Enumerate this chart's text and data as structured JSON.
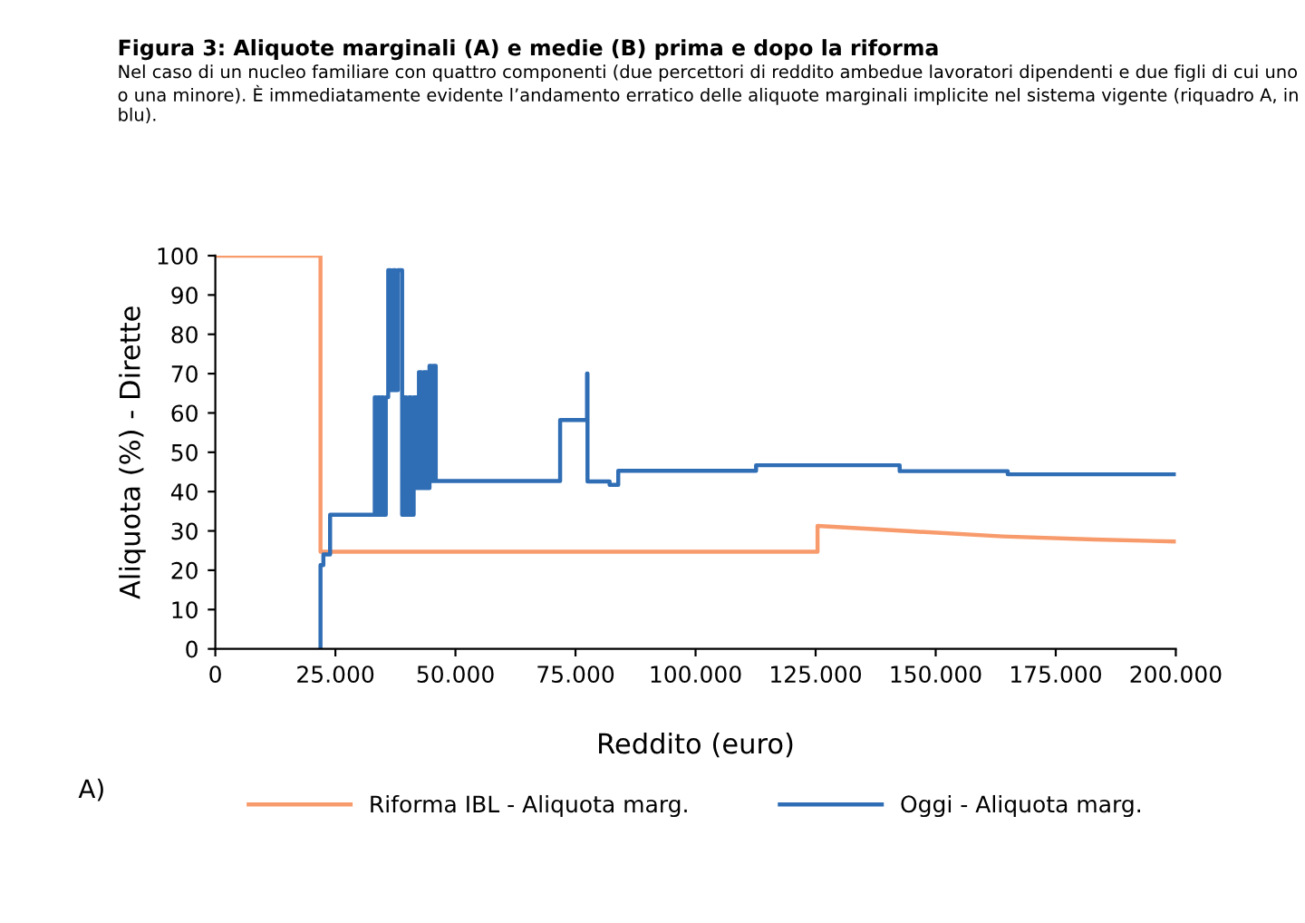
{
  "chart_data": {
    "type": "line",
    "title": "Figura 3: Aliquote marginali (A) e medie (B) prima e dopo la riforma",
    "subtitle": "Nel caso di un nucleo familiare con quattro componenti (due percettori di reddito ambedue lavoratori dipendenti e due figli di cui uno o una minore). È immediatamente evidente l’andamento erratico delle aliquote marginali implicite nel sistema vigente (riquadro A, in blu).",
    "xlabel": "Reddito (euro)",
    "ylabel": "Aliquota (%) - Dirette",
    "annotations": [
      "A)"
    ],
    "series": [
      {
        "name": "Riforma IBL - Aliquota marg.",
        "color": "#f89b6c",
        "x": [
          0,
          21900,
          21900,
          125400,
          125400,
          145000,
          164000,
          183000,
          200000
        ],
        "values": [
          100,
          100,
          24.7,
          24.7,
          31.3,
          29.9,
          28.6,
          27.8,
          27.3
        ]
      },
      {
        "name": "Oggi - Aliquota marg.",
        "color": "#2f6db5",
        "x": [
          21900,
          21900,
          22500,
          22500,
          23900,
          23900,
          33200,
          33200,
          33500,
          33500,
          33800,
          33800,
          34200,
          34200,
          34600,
          34600,
          35000,
          35000,
          35500,
          35500,
          36000,
          36000,
          36500,
          36500,
          37000,
          37000,
          37500,
          37500,
          38000,
          38000,
          38900,
          38900,
          39300,
          39300,
          39800,
          39800,
          40300,
          40300,
          40800,
          40800,
          41300,
          41300,
          41900,
          41900,
          42400,
          42400,
          42900,
          42900,
          43400,
          43400,
          44000,
          44000,
          44600,
          44600,
          45000,
          45000,
          45400,
          45400,
          45900,
          45900,
          71800,
          71800,
          77400,
          77400,
          77500,
          77500,
          82100,
          82100,
          83900,
          83900,
          112600,
          112600,
          142500,
          142500,
          165000,
          165000,
          200000
        ],
        "values": [
          0,
          21.3,
          21.3,
          24,
          24,
          34.1,
          34.1,
          64,
          64,
          34.1,
          34.1,
          64,
          64,
          34.1,
          34.1,
          64,
          64,
          34.1,
          34.1,
          64,
          64,
          96.3,
          96.3,
          65.8,
          65.8,
          96.3,
          96.3,
          65.8,
          65.8,
          96.3,
          96.3,
          34.1,
          34.1,
          64,
          64,
          34.1,
          34.1,
          64,
          64,
          34.1,
          34.1,
          64,
          64,
          40.9,
          40.9,
          70.4,
          70.4,
          40.9,
          40.9,
          70.4,
          70.4,
          40.9,
          40.9,
          72,
          72,
          42.7,
          42.7,
          72,
          72,
          42.7,
          42.7,
          58.2,
          58.2,
          70,
          70,
          42.6,
          42.6,
          41.7,
          41.7,
          45.3,
          45.3,
          46.7,
          46.7,
          45.2,
          45.2,
          44.4,
          44.4
        ]
      }
    ],
    "xlim": [
      0,
      200000
    ],
    "xticks": [
      {
        "value": 0,
        "label": "0"
      },
      {
        "value": 25000,
        "label": "25.000"
      },
      {
        "value": 50000,
        "label": "50.000"
      },
      {
        "value": 75000,
        "label": "75.000"
      },
      {
        "value": 100000,
        "label": "100.000"
      },
      {
        "value": 125000,
        "label": "125.000"
      },
      {
        "value": 150000,
        "label": "150.000"
      },
      {
        "value": 175000,
        "label": "175.000"
      },
      {
        "value": 200000,
        "label": "200.000"
      }
    ],
    "ylim": [
      0,
      100
    ],
    "yticks": [
      0,
      10,
      20,
      30,
      40,
      50,
      60,
      70,
      80,
      90,
      100
    ],
    "grid": false,
    "legend": "bottom",
    "marker": "none",
    "line_style": "solid"
  }
}
